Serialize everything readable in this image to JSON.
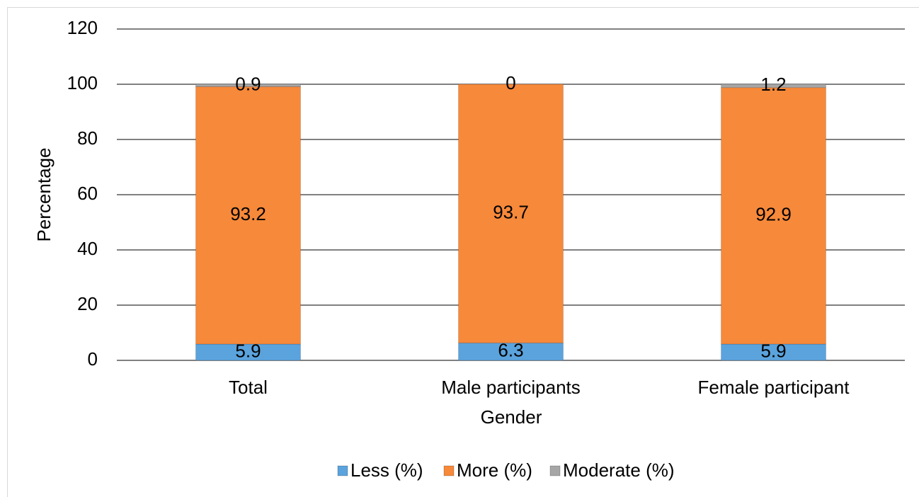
{
  "chart_data": {
    "type": "stacked_bar",
    "x_label": "Gender",
    "y_label": "Percentage",
    "categories": [
      "Total",
      "Male participants",
      "Female participant"
    ],
    "series": [
      {
        "name": "Less (%)",
        "color": "#5ba3dc",
        "values": [
          5.9,
          6.3,
          5.9
        ]
      },
      {
        "name": "More (%)",
        "color": "#f7893a",
        "values": [
          93.2,
          93.7,
          92.9
        ]
      },
      {
        "name": "Moderate (%)",
        "color": "#a6a6a6",
        "values": [
          0.9,
          0,
          1.2
        ]
      }
    ],
    "ylim": [
      0,
      120
    ],
    "yticks": [
      0,
      20,
      40,
      60,
      80,
      100,
      120
    ],
    "grid": true,
    "legend": "bottom"
  }
}
